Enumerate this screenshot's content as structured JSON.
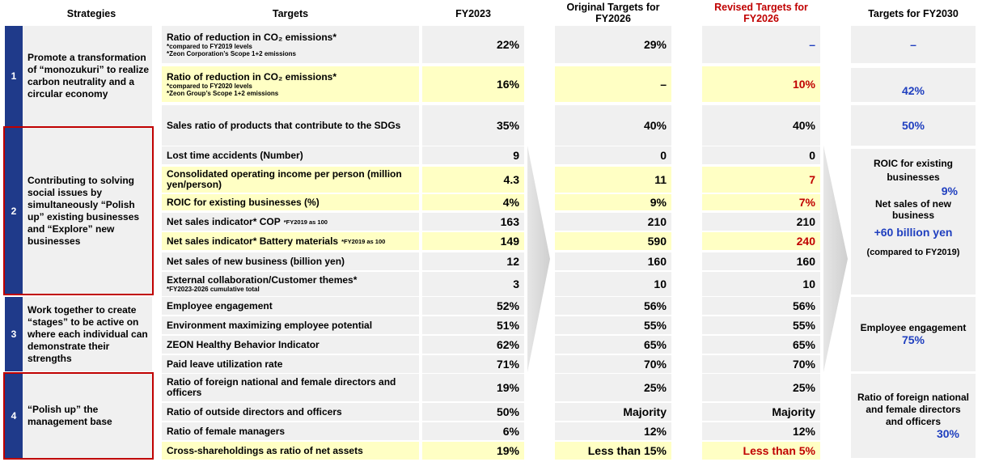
{
  "headers": {
    "strategies": "Strategies",
    "targets": "Targets",
    "fy2023": "FY2023",
    "original": "Original Targets for FY2026",
    "revised": "Revised Targets for FY2026",
    "fy2030": "Targets for FY2030"
  },
  "strategies": [
    {
      "num": "1",
      "text": "Promote a transformation of “monozukuri” to realize carbon neutrality and a circular economy"
    },
    {
      "num": "2",
      "text": "Contributing to solving social issues by simultaneously “Polish up” existing businesses and “Explore” new businesses"
    },
    {
      "num": "3",
      "text": "Work together to create “stages” to be active on where each individual can demonstrate their strengths"
    },
    {
      "num": "4",
      "text": "“Polish up” the management base"
    }
  ],
  "rows": [
    {
      "label": "Ratio of reduction in CO₂ emissions*",
      "note1": "*compared to FY2019 levels",
      "note2": "*Zeon Corporation’s Scope 1+2 emissions",
      "fy2023": "22%",
      "original": "29%",
      "revised": "–"
    },
    {
      "label": "Ratio of reduction in CO₂ emissions*",
      "note1": "*compared to FY2020 levels",
      "note2": "*Zeon Group’s Scope 1+2 emissions",
      "fy2023": "16%",
      "original": "–",
      "revised": "10%"
    },
    {
      "label": "Sales ratio of products that contribute to the SDGs",
      "fy2023": "35%",
      "original": "40%",
      "revised": "40%"
    },
    {
      "label": "Lost time accidents (Number)",
      "fy2023": "9",
      "original": "0",
      "revised": "0"
    },
    {
      "label": "Consolidated operating income per person (million yen/person)",
      "fy2023": "4.3",
      "original": "11",
      "revised": "7"
    },
    {
      "label": "ROIC for existing businesses (%)",
      "fy2023": "4%",
      "original": "9%",
      "revised": "7%"
    },
    {
      "label": "Net sales indicator* COP",
      "inline_note": "*FY2019 as 100",
      "fy2023": "163",
      "original": "210",
      "revised": "210"
    },
    {
      "label": "Net sales indicator* Battery materials",
      "inline_note": "*FY2019 as 100",
      "fy2023": "149",
      "original": "590",
      "revised": "240"
    },
    {
      "label": "Net sales of new business (billion yen)",
      "fy2023": "12",
      "original": "160",
      "revised": "160"
    },
    {
      "label": "External collaboration/Customer themes*",
      "note1": "*FY2023-2026 cumulative total",
      "fy2023": "3",
      "original": "10",
      "revised": "10"
    },
    {
      "label": "Employee engagement",
      "fy2023": "52%",
      "original": "56%",
      "revised": "56%"
    },
    {
      "label": "Environment maximizing employee potential",
      "fy2023": "51%",
      "original": "55%",
      "revised": "55%"
    },
    {
      "label": "ZEON Healthy Behavior Indicator",
      "fy2023": "62%",
      "original": "65%",
      "revised": "65%"
    },
    {
      "label": "Paid leave utilization rate",
      "fy2023": "71%",
      "original": "70%",
      "revised": "70%"
    },
    {
      "label": "Ratio of foreign national and female directors and officers",
      "fy2023": "19%",
      "original": "25%",
      "revised": "25%"
    },
    {
      "label": "Ratio of outside directors and officers",
      "fy2023": "50%",
      "original": "Majority",
      "revised": "Majority"
    },
    {
      "label": "Ratio of female managers",
      "fy2023": "6%",
      "original": "12%",
      "revised": "12%"
    },
    {
      "label": "Cross-shareholdings as ratio of net assets",
      "fy2023": "19%",
      "original": "Less than 15%",
      "revised": "Less than 5%"
    }
  ],
  "fy2030": {
    "b1": "–",
    "b2": "42%",
    "b3": "50%",
    "b4_l1": "ROIC for existing businesses",
    "b4_v1": "9%",
    "b4_l2": "Net sales of new business",
    "b4_v2": "+60  billion yen",
    "b4_l3": "(compared to  FY2019)",
    "b5_l1": "Employee engagement",
    "b5_v1": "75%",
    "b6_l1": "Ratio of foreign national and female directors and officers",
    "b6_v1": "30%"
  },
  "colors": {
    "navy": "#1f3a8a",
    "red": "#c00000",
    "blue": "#1f3fbf",
    "grey": "#f0f0f0",
    "yellow": "#ffffc4"
  }
}
